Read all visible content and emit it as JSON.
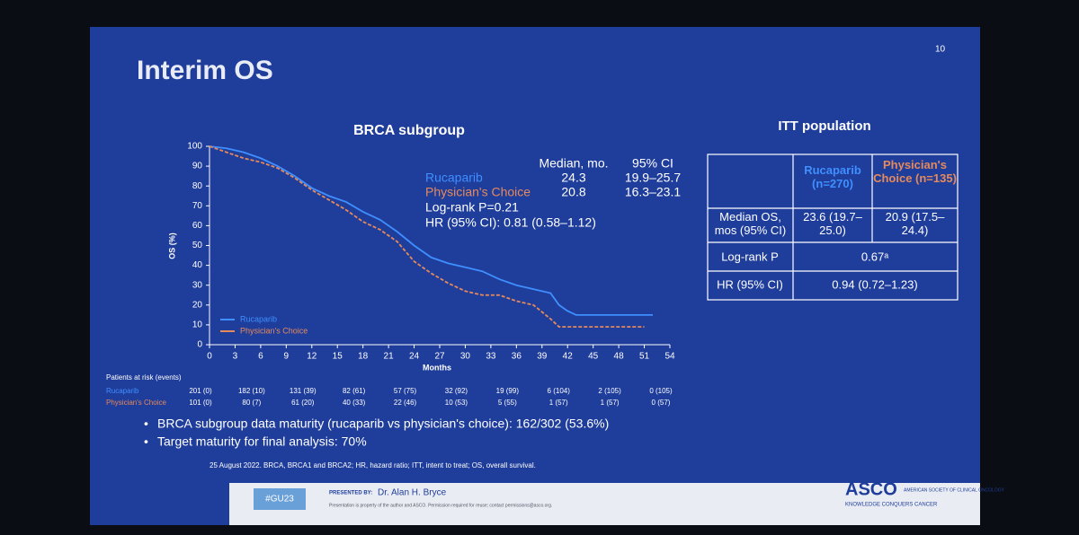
{
  "slide": {
    "title": "Interim OS",
    "page_number": "10",
    "subtitle": "BRCA subgroup",
    "median_table": {
      "headers": [
        "Median, mo.",
        "95% CI"
      ],
      "rows": [
        [
          "Rucaparib",
          "24.3",
          "19.9–25.7"
        ],
        [
          "Physician's Choice",
          "20.8",
          "16.3–23.1"
        ]
      ],
      "logrank": "Log-rank P=0.21",
      "hr": "HR (95% CI): 0.81 (0.58–1.12)"
    },
    "risk_table": {
      "title": "Patients at risk (events)",
      "rows": [
        {
          "name": "Rucaparib",
          "values": [
            "201 (0)",
            "182 (10)",
            "131 (39)",
            "82 (61)",
            "57 (75)",
            "32 (92)",
            "19 (99)",
            "6 (104)",
            "2 (105)",
            "0 (105)"
          ]
        },
        {
          "name": "Physician's Choice",
          "values": [
            "101 (0)",
            "80 (7)",
            "61 (20)",
            "40 (33)",
            "22 (46)",
            "10 (53)",
            "5 (55)",
            "1 (57)",
            "1 (57)",
            "0 (57)"
          ]
        }
      ]
    },
    "bullets": [
      "BRCA subgroup data maturity (rucaparib vs physician's choice): 162/302 (53.6%)",
      "Target maturity for final analysis: 70%"
    ],
    "footnote": "25 August 2022. BRCA, BRCA1 and BRCA2; HR, hazard ratio; ITT, intent to treat; OS, overall survival.",
    "footer": {
      "hashtag": "#GU23",
      "presented_by": "PRESENTED BY:",
      "presenter": "Dr. Alan H. Bryce",
      "disclaimer": "Presentation is property of the author and ASCO. Permission required for reuse; contact permissions@asco.org.",
      "logo": "ASCO",
      "society": "AMERICAN SOCIETY OF CLINICAL ONCOLOGY",
      "tagline": "KNOWLEDGE CONQUERS CANCER"
    }
  },
  "itt_table": {
    "title": "ITT population",
    "headers": [
      "Rucaparib (n=270)",
      "Physician's Choice (n=135)"
    ],
    "rows": [
      [
        "Median OS, mos (95% CI)",
        "23.6 (19.7–25.0)",
        "20.9 (17.5–24.4)"
      ],
      [
        "Log-rank P",
        "0.67ᵃ"
      ],
      [
        "HR (95% CI)",
        "0.94 (0.72–1.23)"
      ]
    ]
  },
  "chart_data": {
    "type": "line",
    "x_label": "Months",
    "y_label": "OS (%)",
    "xlim": [
      0,
      54
    ],
    "ylim": [
      0,
      100
    ],
    "xticks": [
      0,
      3,
      6,
      9,
      12,
      15,
      18,
      21,
      24,
      27,
      30,
      33,
      36,
      39,
      42,
      45,
      48,
      51,
      54
    ],
    "yticks": [
      0,
      10,
      20,
      30,
      40,
      50,
      60,
      70,
      80,
      90,
      100
    ],
    "legend": "lower left",
    "series": [
      {
        "name": "Rucaparib",
        "color": "#3f8fff",
        "x": [
          0,
          2,
          4,
          6,
          8,
          10,
          12,
          14,
          16,
          18,
          20,
          22,
          24,
          26,
          28,
          30,
          32,
          34,
          36,
          38,
          40,
          41,
          42,
          43,
          52
        ],
        "values": [
          100,
          99,
          97,
          94,
          90,
          85,
          79,
          75,
          72,
          67,
          63,
          57,
          50,
          44,
          41,
          39,
          37,
          33,
          30,
          28,
          26,
          20,
          17,
          15,
          15
        ]
      },
      {
        "name": "Physician's Choice",
        "color": "#e58a5c",
        "x": [
          0,
          2,
          4,
          6,
          8,
          10,
          12,
          14,
          16,
          18,
          20,
          22,
          24,
          26,
          28,
          30,
          32,
          34,
          36,
          38,
          40,
          41,
          51
        ],
        "values": [
          100,
          97,
          94,
          92,
          89,
          84,
          78,
          73,
          68,
          62,
          58,
          52,
          42,
          36,
          31,
          27,
          25,
          25,
          22,
          20,
          13,
          9,
          9
        ]
      }
    ]
  }
}
